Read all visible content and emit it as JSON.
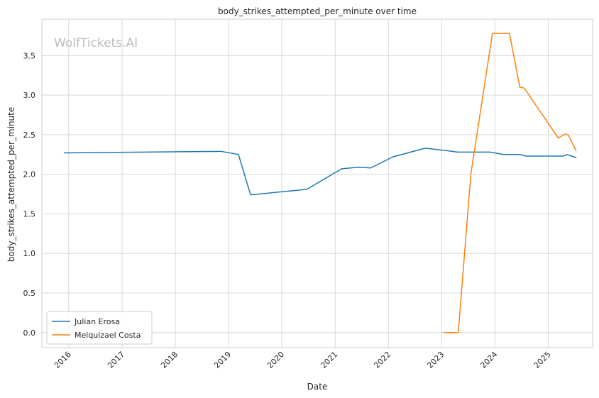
{
  "chart_data": {
    "type": "line",
    "title": "body_strikes_attempted_per_minute over time",
    "xlabel": "Date",
    "ylabel": "body_strikes_attempted_per_minute",
    "watermark": "WolfTickets.AI",
    "xlim": [
      "2015-07-01",
      "2025-11-01"
    ],
    "ylim": [
      -0.19,
      3.96
    ],
    "x_ticks": [
      "2016",
      "2017",
      "2018",
      "2019",
      "2020",
      "2021",
      "2022",
      "2023",
      "2024",
      "2025"
    ],
    "y_ticks": [
      "0.0",
      "0.5",
      "1.0",
      "1.5",
      "2.0",
      "2.5",
      "3.0",
      "3.5"
    ],
    "grid": true,
    "legend_position": "lower-left",
    "series": [
      {
        "name": "Julian Erosa",
        "color": "#1f77b4",
        "points": [
          {
            "x": "2015-12-01",
            "y": 2.27
          },
          {
            "x": "2018-11-10",
            "y": 2.29
          },
          {
            "x": "2019-03-10",
            "y": 2.25
          },
          {
            "x": "2019-06-01",
            "y": 1.74
          },
          {
            "x": "2020-06-20",
            "y": 1.81
          },
          {
            "x": "2021-02-15",
            "y": 2.07
          },
          {
            "x": "2021-06-15",
            "y": 2.09
          },
          {
            "x": "2021-09-01",
            "y": 2.08
          },
          {
            "x": "2022-02-01",
            "y": 2.22
          },
          {
            "x": "2022-09-10",
            "y": 2.33
          },
          {
            "x": "2022-12-15",
            "y": 2.31
          },
          {
            "x": "2023-02-01",
            "y": 2.3
          },
          {
            "x": "2023-04-20",
            "y": 2.28
          },
          {
            "x": "2023-12-01",
            "y": 2.28
          },
          {
            "x": "2024-03-01",
            "y": 2.25
          },
          {
            "x": "2024-06-20",
            "y": 2.25
          },
          {
            "x": "2024-08-01",
            "y": 2.23
          },
          {
            "x": "2025-03-01",
            "y": 2.23
          },
          {
            "x": "2025-04-15",
            "y": 2.23
          },
          {
            "x": "2025-05-10",
            "y": 2.25
          },
          {
            "x": "2025-07-10",
            "y": 2.21
          }
        ]
      },
      {
        "name": "Melquizael Costa",
        "color": "#ff7f0e",
        "points": [
          {
            "x": "2023-01-15",
            "y": 0.0
          },
          {
            "x": "2023-04-25",
            "y": 0.0
          },
          {
            "x": "2023-07-20",
            "y": 2.0
          },
          {
            "x": "2023-12-15",
            "y": 3.78
          },
          {
            "x": "2024-04-10",
            "y": 3.78
          },
          {
            "x": "2024-06-20",
            "y": 3.1
          },
          {
            "x": "2024-07-20",
            "y": 3.09
          },
          {
            "x": "2025-03-10",
            "y": 2.46
          },
          {
            "x": "2025-04-30",
            "y": 2.51
          },
          {
            "x": "2025-05-20",
            "y": 2.49
          },
          {
            "x": "2025-07-10",
            "y": 2.3
          }
        ]
      }
    ]
  }
}
